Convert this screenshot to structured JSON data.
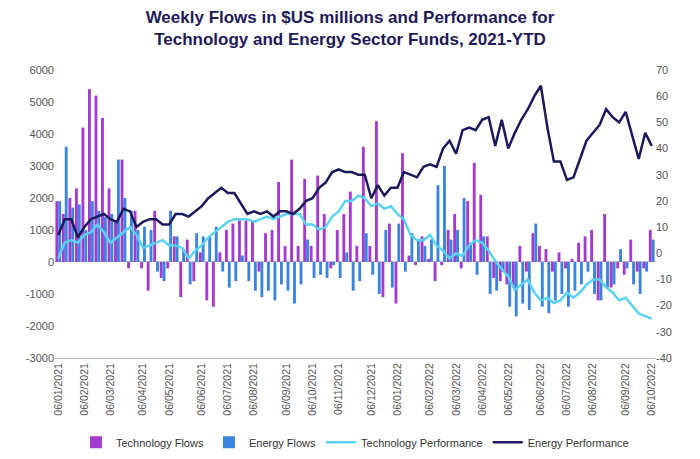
{
  "chart_data": {
    "type": "bar",
    "title": "Weekly Flows in $US millions and Performance for\nTechnology and Energy Sector Funds, 2021-YTD",
    "categories": [
      "06/01/2021",
      null,
      null,
      null,
      "06/02/2021",
      null,
      null,
      null,
      "06/03/2021",
      null,
      null,
      null,
      null,
      "06/04/2021",
      null,
      null,
      null,
      "06/05/2021",
      null,
      null,
      null,
      null,
      "06/06/2021",
      null,
      null,
      null,
      "06/07/2021",
      null,
      null,
      null,
      "06/08/2021",
      null,
      null,
      null,
      null,
      "06/09/2021",
      null,
      null,
      null,
      "06/10/2021",
      null,
      null,
      null,
      "06/11/2021",
      null,
      null,
      null,
      null,
      "06/12/2021",
      null,
      null,
      null,
      "06/01/2022",
      null,
      null,
      null,
      null,
      "06/02/2022",
      null,
      null,
      null,
      "06/03/2022",
      null,
      null,
      null,
      "06/04/2022",
      null,
      null,
      null,
      "06/05/2022",
      null,
      null,
      null,
      null,
      "06/06/2022",
      null,
      null,
      null,
      "06/07/2022",
      null,
      null,
      null,
      "06/08/2022",
      null,
      null,
      null,
      null,
      "06/09/2022",
      null,
      null,
      null,
      "06/10/2022"
    ],
    "series": [
      {
        "name": "Technology Flows",
        "type": "bar",
        "color": "#a33bd1",
        "values": [
          1900,
          1500,
          2000,
          2300,
          4200,
          5400,
          5200,
          4500,
          2300,
          1300,
          3200,
          -200,
          1600,
          -200,
          -900,
          1600,
          -500,
          -200,
          800,
          -1100,
          700,
          -600,
          300,
          -1200,
          -1400,
          300,
          1000,
          1200,
          1300,
          1300,
          1300,
          -300,
          900,
          1000,
          2500,
          500,
          3200,
          500,
          2600,
          500,
          2700,
          1500,
          -200,
          1000,
          1500,
          2200,
          500,
          3600,
          500,
          4400,
          -1100,
          1200,
          -1300,
          3400,
          200,
          -100,
          800,
          100,
          -600,
          -100,
          1000,
          1500,
          -200,
          1900,
          3100,
          2100,
          800,
          -500,
          -600,
          -700,
          -800,
          500,
          -300,
          900,
          500,
          400,
          -300,
          300,
          -200,
          100,
          600,
          800,
          1000,
          -1200,
          1500,
          -800,
          -200,
          -400,
          700,
          -300,
          -200,
          1000
        ]
      },
      {
        "name": "Energy Flows",
        "type": "bar",
        "color": "#3a84df",
        "values": [
          1900,
          3600,
          1700,
          1800,
          1000,
          1900,
          1600,
          1400,
          1500,
          3200,
          2000,
          1600,
          1000,
          1100,
          1000,
          -300,
          -600,
          1600,
          800,
          400,
          -700,
          900,
          800,
          800,
          1100,
          -300,
          -800,
          -600,
          200,
          -600,
          -900,
          -1100,
          -900,
          -1200,
          -700,
          -900,
          -1300,
          -700,
          700,
          -500,
          -400,
          -500,
          -100,
          -500,
          300,
          -900,
          -600,
          900,
          -400,
          -1000,
          1000,
          -800,
          1200,
          -300,
          900,
          700,
          500,
          700,
          2400,
          3000,
          700,
          1000,
          2000,
          600,
          -400,
          800,
          -1000,
          -900,
          -300,
          -1400,
          -1700,
          -1300,
          -1500,
          1200,
          -1400,
          -1600,
          -1200,
          -1000,
          -1400,
          -900,
          -700,
          -300,
          -1000,
          -1200,
          -800,
          -700,
          400,
          -200,
          -700,
          -1000,
          -300,
          700
        ]
      },
      {
        "name": "Technology Performance",
        "type": "line",
        "axis": "y2",
        "color": "#5cd2f2",
        "values": [
          -2,
          4,
          5,
          4,
          7,
          8,
          11,
          8,
          4,
          6,
          8,
          10,
          7,
          2,
          3,
          4,
          5,
          3,
          3,
          2,
          -2,
          1,
          3,
          6,
          8,
          10,
          12,
          13,
          13,
          13,
          12,
          13,
          14,
          13,
          14,
          15,
          15,
          15,
          11,
          11,
          9,
          10,
          14,
          16,
          20,
          20,
          22,
          21,
          18,
          19,
          17,
          18,
          15,
          13,
          7,
          5,
          5,
          7,
          3,
          1,
          -2,
          0,
          -1,
          3,
          5,
          4,
          1,
          -3,
          -6,
          -9,
          -14,
          -12,
          -10,
          -15,
          -18,
          -17,
          -19,
          -18,
          -15,
          -17,
          -15,
          -12,
          -10,
          -10,
          -13,
          -15,
          -18,
          -17,
          -20,
          -23,
          -24,
          -25
        ]
      },
      {
        "name": "Energy Performance",
        "type": "line",
        "axis": "y2",
        "color": "#1c1a5c",
        "values": [
          7,
          13,
          13,
          6,
          10,
          13,
          14,
          15,
          13,
          12,
          17,
          16,
          10,
          12,
          13,
          13,
          11,
          11,
          15,
          15,
          14,
          16,
          18,
          21,
          23,
          25,
          23,
          23,
          19,
          15,
          16,
          15,
          16,
          14,
          16,
          16,
          15,
          17,
          20,
          21,
          25,
          27,
          31,
          32,
          31,
          31,
          30,
          30,
          21,
          26,
          22,
          25,
          25,
          31,
          30,
          29,
          33,
          34,
          33,
          40,
          43,
          38,
          47,
          48,
          47,
          51,
          52,
          41,
          51,
          40,
          46,
          51,
          55,
          60,
          64,
          48,
          35,
          35,
          28,
          29,
          36,
          43,
          46,
          49,
          55,
          52,
          50,
          54,
          45,
          36,
          46,
          41
        ]
      }
    ],
    "ylim": [
      -3000,
      6000
    ],
    "yticks": [
      -3000,
      -2000,
      -1000,
      0,
      1000,
      2000,
      3000,
      4000,
      5000,
      6000
    ],
    "y2lim": [
      -40,
      70
    ],
    "y2ticks": [
      -40,
      -30,
      -20,
      -10,
      0,
      10,
      20,
      30,
      40,
      50,
      60,
      70
    ],
    "legend": "bottom",
    "grid": false
  }
}
